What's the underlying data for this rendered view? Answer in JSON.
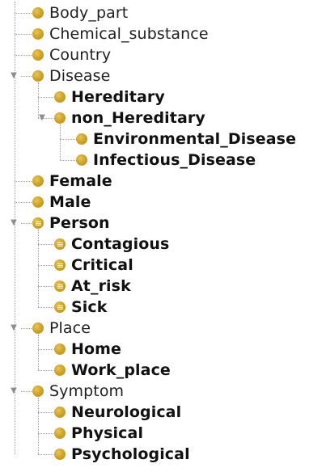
{
  "tree": {
    "icon_color": "#c9a02a",
    "nodes": [
      {
        "label": "Body_part",
        "depth": 0,
        "expanded": null,
        "defined": false,
        "bold": false
      },
      {
        "label": "Chemical_substance",
        "depth": 0,
        "expanded": null,
        "defined": false,
        "bold": false
      },
      {
        "label": "Country",
        "depth": 0,
        "expanded": null,
        "defined": false,
        "bold": false
      },
      {
        "label": "Disease",
        "depth": 0,
        "expanded": true,
        "defined": false,
        "bold": false
      },
      {
        "label": "Hereditary",
        "depth": 1,
        "expanded": null,
        "defined": false,
        "bold": true
      },
      {
        "label": "non_Hereditary",
        "depth": 1,
        "expanded": true,
        "defined": false,
        "bold": true
      },
      {
        "label": "Environmental_Disease",
        "depth": 2,
        "expanded": null,
        "defined": false,
        "bold": true
      },
      {
        "label": "Infectious_Disease",
        "depth": 2,
        "expanded": null,
        "defined": false,
        "bold": true
      },
      {
        "label": "Female",
        "depth": 0,
        "expanded": null,
        "defined": false,
        "bold": true
      },
      {
        "label": "Male",
        "depth": 0,
        "expanded": null,
        "defined": false,
        "bold": true
      },
      {
        "label": "Person",
        "depth": 0,
        "expanded": true,
        "defined": true,
        "bold": true
      },
      {
        "label": "Contagious",
        "depth": 1,
        "expanded": null,
        "defined": true,
        "bold": true
      },
      {
        "label": "Critical",
        "depth": 1,
        "expanded": null,
        "defined": true,
        "bold": true
      },
      {
        "label": "At_risk",
        "depth": 1,
        "expanded": null,
        "defined": true,
        "bold": true
      },
      {
        "label": "Sick",
        "depth": 1,
        "expanded": null,
        "defined": true,
        "bold": true
      },
      {
        "label": "Place",
        "depth": 0,
        "expanded": true,
        "defined": false,
        "bold": false
      },
      {
        "label": "Home",
        "depth": 1,
        "expanded": null,
        "defined": false,
        "bold": true
      },
      {
        "label": "Work_place",
        "depth": 1,
        "expanded": null,
        "defined": false,
        "bold": true
      },
      {
        "label": "Symptom",
        "depth": 0,
        "expanded": true,
        "defined": false,
        "bold": false
      },
      {
        "label": "Neurological",
        "depth": 1,
        "expanded": null,
        "defined": false,
        "bold": true
      },
      {
        "label": "Physical",
        "depth": 1,
        "expanded": null,
        "defined": false,
        "bold": true
      },
      {
        "label": "Psychological",
        "depth": 1,
        "expanded": null,
        "defined": false,
        "bold": true
      }
    ]
  }
}
